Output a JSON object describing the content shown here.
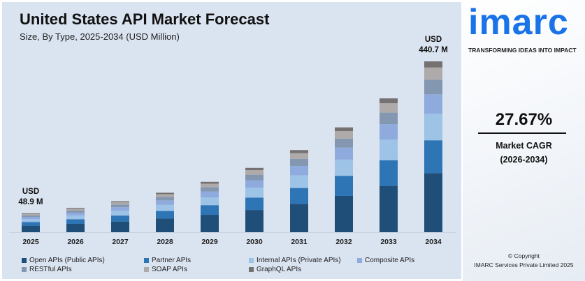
{
  "chart_data": {
    "type": "bar",
    "stacked": true,
    "title": "United States API Market Forecast",
    "subtitle": "Size, By Type, 2025-2034 (USD Million)",
    "categories": [
      "2025",
      "2026",
      "2027",
      "2028",
      "2029",
      "2030",
      "2031",
      "2032",
      "2033",
      "2034"
    ],
    "series": [
      {
        "name": "Open APIs (Public APIs)",
        "color": "#1f4e79",
        "values": [
          16.9,
          21.6,
          27.6,
          35.2,
          44.9,
          57.4,
          73.3,
          93.6,
          119.4,
          152.5
        ]
      },
      {
        "name": "Partner APIs",
        "color": "#2e75b6",
        "values": [
          9.4,
          12.0,
          15.3,
          19.5,
          24.9,
          31.9,
          40.7,
          51.9,
          66.3,
          84.6
        ]
      },
      {
        "name": "Internal APIs (Private APIs)",
        "color": "#9dc3e6",
        "values": [
          7.6,
          9.7,
          12.4,
          15.8,
          20.1,
          25.7,
          32.8,
          41.9,
          53.5,
          68.3
        ]
      },
      {
        "name": "Composite APIs",
        "color": "#8faadc",
        "values": [
          5.6,
          7.1,
          9.1,
          11.6,
          14.8,
          18.9,
          24.1,
          30.8,
          39.4,
          50.2
        ]
      },
      {
        "name": "RESTful APIs",
        "color": "#8497b0",
        "values": [
          4.2,
          5.4,
          6.9,
          8.8,
          11.2,
          14.3,
          18.2,
          23.3,
          29.7,
          37.9
        ]
      },
      {
        "name": "SOAP APIs",
        "color": "#aeaaaa",
        "values": [
          3.5,
          4.4,
          5.7,
          7.2,
          9.2,
          11.8,
          15.0,
          19.2,
          24.5,
          31.3
        ]
      },
      {
        "name": "GraphQL APIs",
        "color": "#767171",
        "values": [
          1.7,
          2.2,
          2.7,
          3.7,
          4.8,
          5.9,
          7.7,
          9.7,
          12.4,
          15.9
        ]
      }
    ],
    "annotations": [
      {
        "category": "2025",
        "line1": "USD",
        "line2": "48.9 M"
      },
      {
        "category": "2034",
        "line1": "USD",
        "line2": "440.7 M"
      }
    ],
    "ylim": [
      0,
      440.7
    ],
    "grid": false,
    "legend_position": "bottom"
  },
  "side": {
    "logo": "imarc",
    "tagline": "TRANSFORMING IDEAS INTO IMPACT",
    "cagr_value": "27.67%",
    "cagr_label": "Market CAGR",
    "cagr_period": "(2026-2034)",
    "copyright_1": "© Copyright",
    "copyright_2": "IMARC Services Private Limited 2025"
  }
}
